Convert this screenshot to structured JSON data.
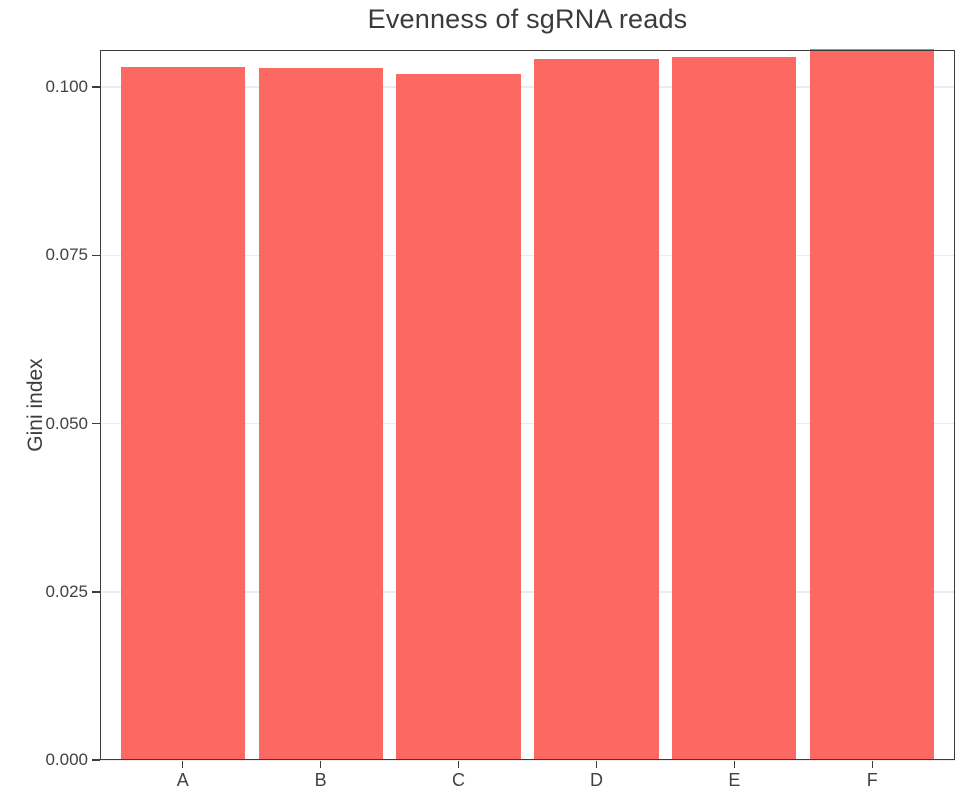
{
  "chart_data": {
    "type": "bar",
    "title": "Evenness of sgRNA reads",
    "xlabel": "",
    "ylabel": "Gini index",
    "categories": [
      "A",
      "B",
      "C",
      "D",
      "E",
      "F"
    ],
    "values": [
      0.103,
      0.1028,
      0.102,
      0.1041,
      0.1045,
      0.1057
    ],
    "ylim": [
      0,
      0.1055
    ],
    "yticks": [
      0,
      0.025,
      0.05,
      0.075,
      0.1
    ],
    "ytick_labels": [
      "0.000",
      "0.025",
      "0.050",
      "0.075",
      "0.100"
    ],
    "grid": "horizontal-major-only",
    "legend": "none",
    "bar_width_fraction": 0.9,
    "colors": {
      "bar": "#FB6962",
      "axis": "#3C3C3C",
      "gridline": "#ECECEC",
      "title_text": "#3B3B3B",
      "tick_text": "#424242",
      "background": "#FFFFFF"
    }
  }
}
